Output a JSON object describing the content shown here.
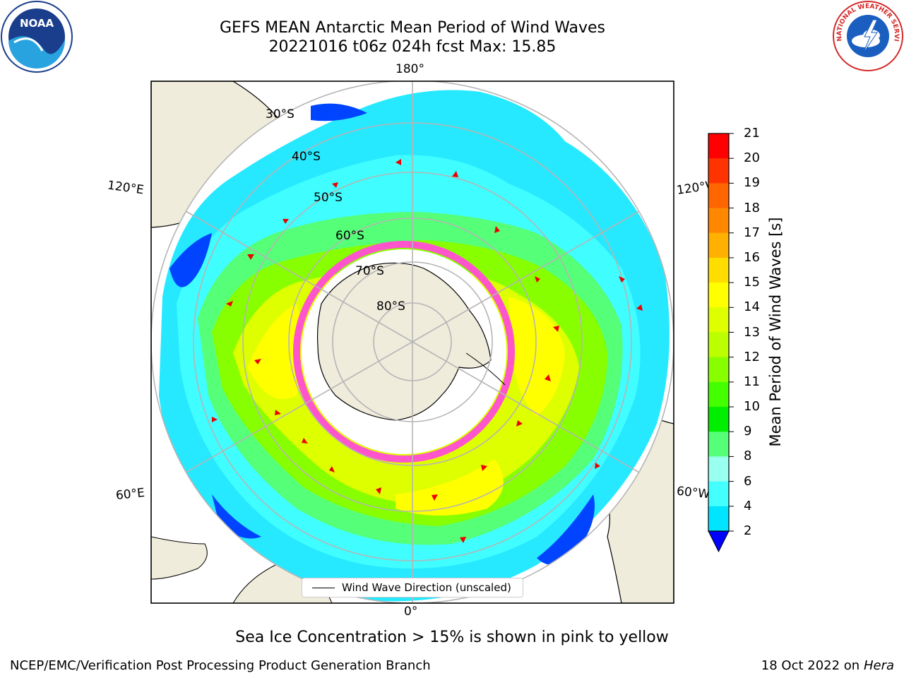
{
  "title": {
    "line1": "GEFS MEAN Antarctic Mean Period of Wind Waves",
    "line2": "20221016 t06z 024h fcst   Max: 15.85"
  },
  "map": {
    "projection": "south-polar-stereographic",
    "lon_labels": {
      "top": "180°",
      "bottom": "0°",
      "upper_left": "120°E",
      "upper_right": "120°W",
      "lower_left": "60°E",
      "lower_right": "60°W"
    },
    "lat_labels": [
      "30°S",
      "40°S",
      "50°S",
      "60°S",
      "70°S",
      "80°S"
    ],
    "legend_label": "Wind Wave Direction (unscaled)",
    "land_color": "#efecdc",
    "sea_ice_color": "#ff55cc",
    "vector_color": "#ee0000"
  },
  "colorbar": {
    "label": "Mean Period of Wind Waves [s]",
    "ticks": [
      "21",
      "20",
      "19",
      "18",
      "17",
      "16",
      "15",
      "14",
      "13",
      "12",
      "11",
      "10",
      "9",
      "8",
      "6",
      "4",
      "2"
    ],
    "colors": [
      "#ff0000",
      "#ff3300",
      "#ff6600",
      "#ff8800",
      "#ffb000",
      "#ffdd00",
      "#ffff00",
      "#ddff00",
      "#bbff00",
      "#88ff00",
      "#44ff00",
      "#00ee00",
      "#55ff77",
      "#99ffee",
      "#44ffff",
      "#00e5ff",
      "#0077ff",
      "#0000ff"
    ]
  },
  "subtitle": "Sea Ice Concentration > 15% is shown in pink to yellow",
  "footer": {
    "left": "NCEP/EMC/Verification Post Processing Product Generation Branch",
    "right_date": "18 Oct 2022 on",
    "right_host": "Hera"
  },
  "logos": {
    "noaa_text": "NOAA",
    "nws_text": "NATIONAL WEATHER SERVICE"
  }
}
